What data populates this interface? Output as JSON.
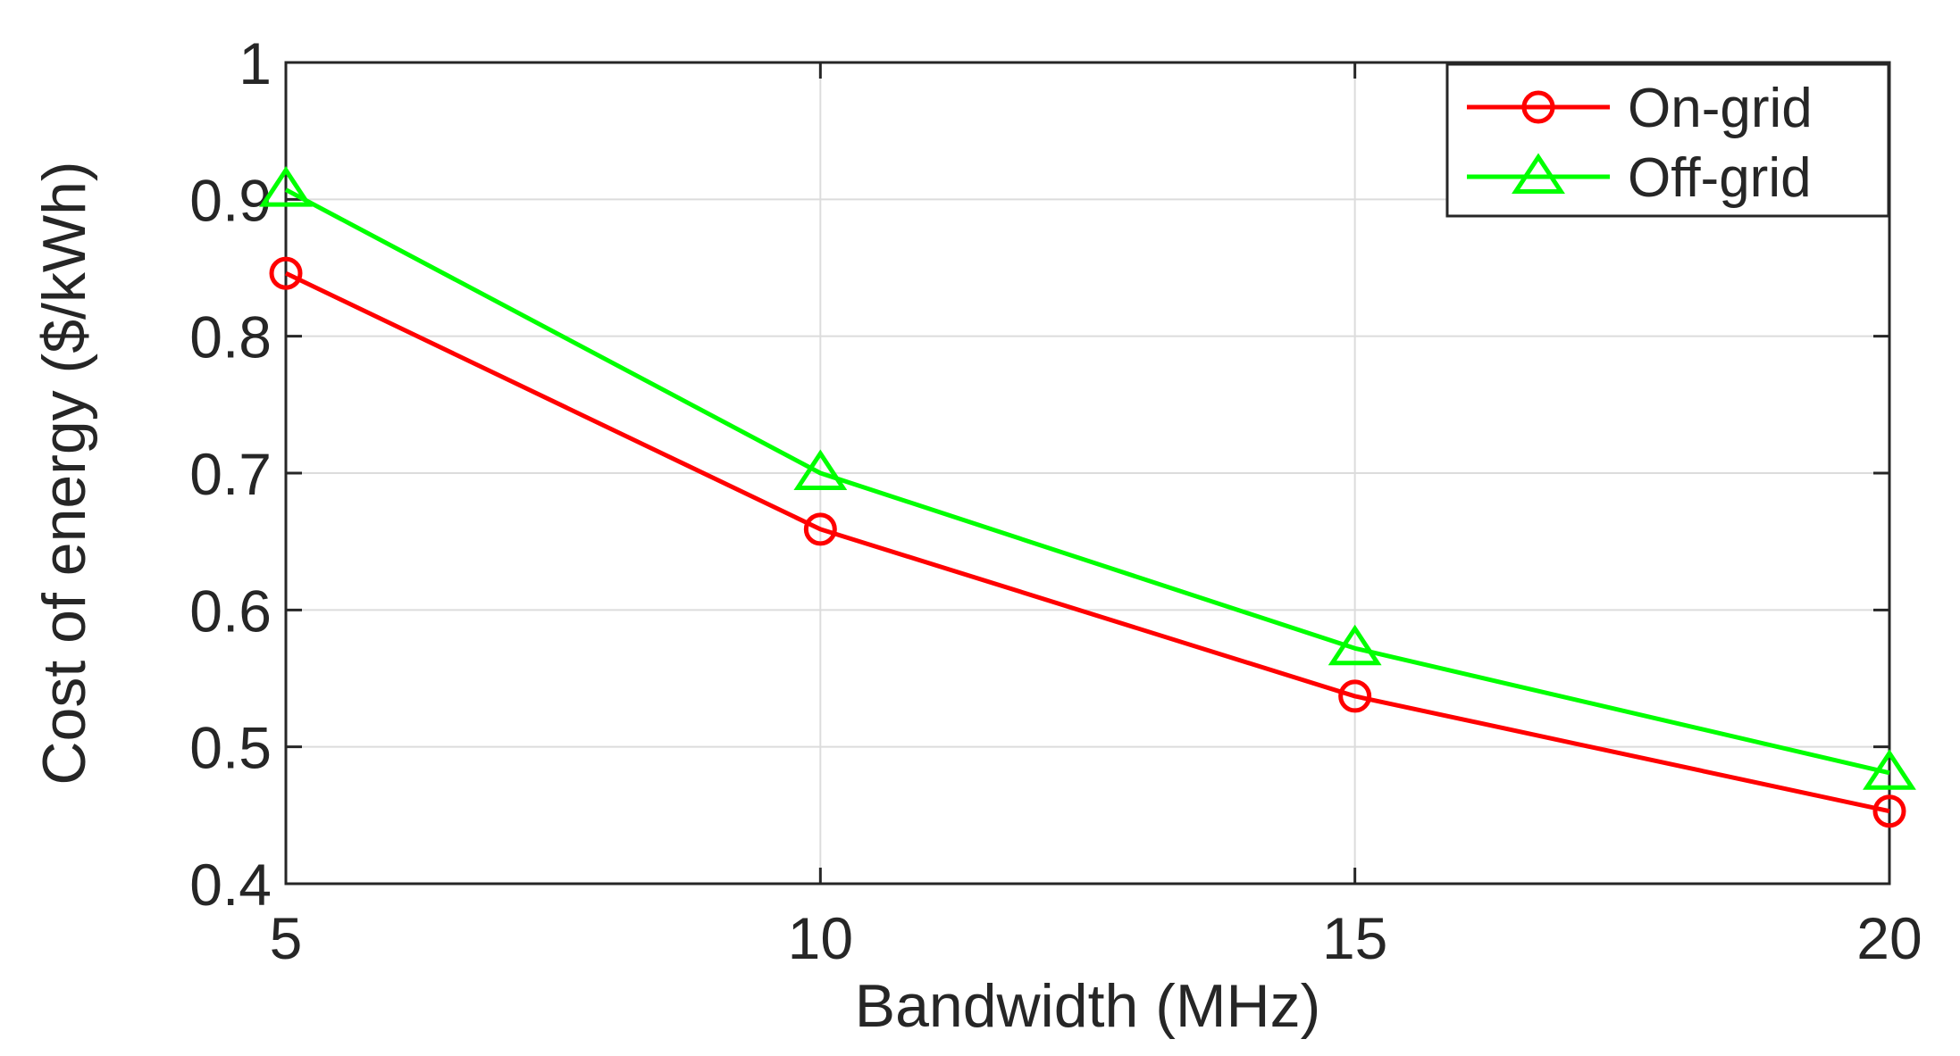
{
  "chart_data": {
    "type": "line",
    "title": "",
    "xlabel": "Bandwidth (MHz)",
    "ylabel": "Cost of energy ($/kWh)",
    "x": [
      5,
      10,
      15,
      20
    ],
    "xlim": [
      5,
      20
    ],
    "ylim": [
      0.4,
      1.0
    ],
    "xticks": [
      5,
      10,
      15,
      20
    ],
    "yticks": [
      0.4,
      0.5,
      0.6,
      0.7,
      0.8,
      0.9,
      1.0
    ],
    "xtick_labels": [
      "5",
      "10",
      "15",
      "20"
    ],
    "ytick_labels": [
      "0.4",
      "0.5",
      "0.6",
      "0.7",
      "0.8",
      "0.9",
      "1"
    ],
    "grid": true,
    "legend_position": "top-right",
    "series": [
      {
        "name": "On-grid",
        "values": [
          0.846,
          0.659,
          0.537,
          0.453
        ],
        "color": "#ff0000",
        "marker": "circle"
      },
      {
        "name": "Off-grid",
        "values": [
          0.907,
          0.7,
          0.572,
          0.481
        ],
        "color": "#00ff00",
        "marker": "triangle"
      }
    ]
  }
}
